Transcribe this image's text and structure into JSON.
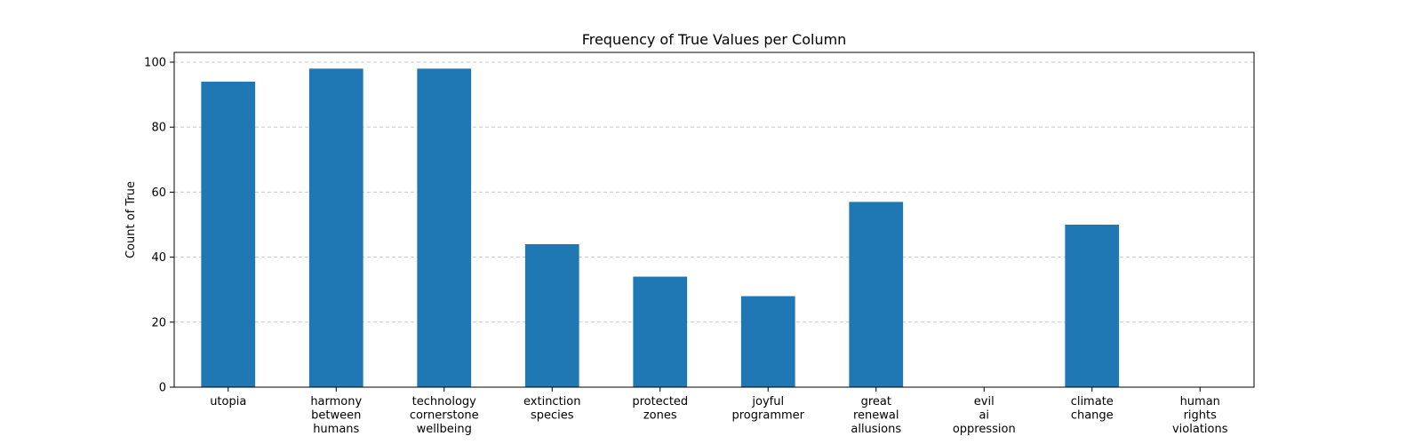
{
  "chart_data": {
    "type": "bar",
    "title": "Frequency of True Values per Column",
    "xlabel": "",
    "ylabel": "Count of True",
    "categories": [
      [
        "utopia"
      ],
      [
        "harmony",
        "between",
        "humans"
      ],
      [
        "technology",
        "cornerstone",
        "wellbeing"
      ],
      [
        "extinction",
        "species"
      ],
      [
        "protected",
        "zones"
      ],
      [
        "joyful",
        "programmer"
      ],
      [
        "great",
        "renewal",
        "allusions"
      ],
      [
        "evil",
        "ai",
        "oppression"
      ],
      [
        "climate",
        "change"
      ],
      [
        "human",
        "rights",
        "violations"
      ]
    ],
    "values": [
      94,
      98,
      98,
      44,
      34,
      28,
      57,
      0,
      50,
      0
    ],
    "ylim": [
      0,
      103
    ],
    "yticks": [
      0,
      20,
      40,
      60,
      80,
      100
    ],
    "grid": "y-dashed",
    "legend": "none",
    "bar_color": "#1f77b4",
    "grid_color": "#c8c8c8"
  }
}
